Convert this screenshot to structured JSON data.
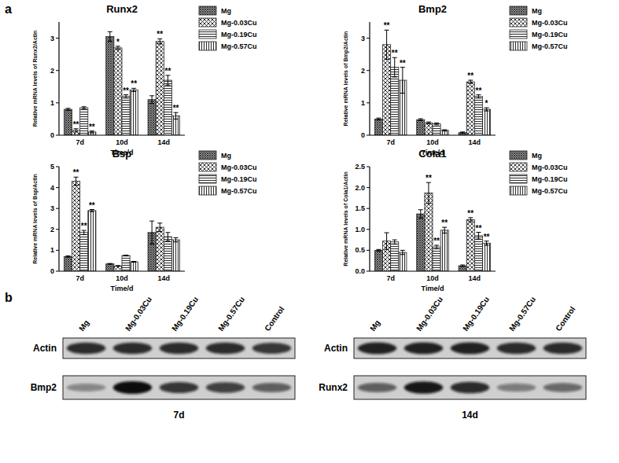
{
  "chart_data": [
    {
      "type": "bar",
      "title": "Runx2",
      "x_label": "Time/d",
      "y_label": "Relative mRNA levels of Runx2/Actin",
      "categories": [
        "7d",
        "10d",
        "14d"
      ],
      "ylim": [
        0,
        3.5
      ],
      "yticks": [
        0,
        1,
        2,
        3
      ],
      "legend": "right",
      "series": [
        {
          "name": "Mg",
          "color": "#333333",
          "values": [
            0.8,
            3.05,
            1.1
          ],
          "errors": [
            0.03,
            0.15,
            0.12
          ],
          "significance": [
            null,
            null,
            null
          ]
        },
        {
          "name": "Mg-0.03Cu",
          "color": "#333333",
          "values": [
            0.15,
            2.7,
            2.9
          ],
          "errors": [
            0.05,
            0.05,
            0.08
          ],
          "significance": [
            "**",
            "*",
            "**"
          ]
        },
        {
          "name": "Mg-0.19Cu",
          "color": "#333333",
          "values": [
            0.85,
            1.2,
            1.7
          ],
          "errors": [
            0.03,
            0.05,
            0.15
          ],
          "significance": [
            null,
            "**",
            "**"
          ]
        },
        {
          "name": "Mg-0.57Cu",
          "color": "#333333",
          "values": [
            0.1,
            1.4,
            0.6
          ],
          "errors": [
            0.03,
            0.05,
            0.1
          ],
          "significance": [
            "**",
            "**",
            "**"
          ]
        }
      ]
    },
    {
      "type": "bar",
      "title": "Bmp2",
      "x_label": "Time/d",
      "y_label": "Relative mRNA levels of Bmp2/Actin",
      "categories": [
        "7d",
        "10d",
        "14d"
      ],
      "ylim": [
        0,
        3.5
      ],
      "yticks": [
        0,
        1,
        2,
        3
      ],
      "legend": "right",
      "series": [
        {
          "name": "Mg",
          "color": "#333333",
          "values": [
            0.5,
            0.48,
            0.08
          ],
          "errors": [
            0.03,
            0.03,
            0.02
          ],
          "significance": [
            null,
            null,
            null
          ]
        },
        {
          "name": "Mg-0.03Cu",
          "color": "#333333",
          "values": [
            2.8,
            0.38,
            1.65
          ],
          "errors": [
            0.45,
            0.03,
            0.05
          ],
          "significance": [
            "**",
            null,
            "**"
          ]
        },
        {
          "name": "Mg-0.19Cu",
          "color": "#333333",
          "values": [
            2.1,
            0.35,
            1.2
          ],
          "errors": [
            0.3,
            0.03,
            0.05
          ],
          "significance": [
            "**",
            null,
            "**"
          ]
        },
        {
          "name": "Mg-0.57Cu",
          "color": "#333333",
          "values": [
            1.7,
            0.15,
            0.8
          ],
          "errors": [
            0.4,
            0.02,
            0.05
          ],
          "significance": [
            "**",
            null,
            "*"
          ]
        }
      ]
    },
    {
      "type": "bar",
      "title": "Bsp",
      "x_label": "Time/d",
      "y_label": "Relative mRNA levels of Bsp/Actin",
      "categories": [
        "7d",
        "10d",
        "14d"
      ],
      "ylim": [
        0,
        5
      ],
      "yticks": [
        0,
        1,
        2,
        3,
        4,
        5
      ],
      "legend": "right",
      "series": [
        {
          "name": "Mg",
          "color": "#333333",
          "values": [
            0.7,
            0.35,
            1.85
          ],
          "errors": [
            0.03,
            0.02,
            0.55
          ],
          "significance": [
            null,
            null,
            null
          ]
        },
        {
          "name": "Mg-0.03Cu",
          "color": "#333333",
          "values": [
            4.3,
            0.25,
            2.1
          ],
          "errors": [
            0.2,
            0.02,
            0.2
          ],
          "significance": [
            "**",
            null,
            null
          ]
        },
        {
          "name": "Mg-0.19Cu",
          "color": "#333333",
          "values": [
            1.85,
            0.75,
            1.65
          ],
          "errors": [
            0.1,
            0.02,
            0.2
          ],
          "significance": [
            "**",
            null,
            null
          ]
        },
        {
          "name": "Mg-0.57Cu",
          "color": "#333333",
          "values": [
            2.9,
            0.45,
            1.5
          ],
          "errors": [
            0.05,
            0.02,
            0.1
          ],
          "significance": [
            "**",
            null,
            null
          ]
        }
      ]
    },
    {
      "type": "bar",
      "title": "Cola1",
      "x_label": "Time/d",
      "y_label": "Relative mRNA levels of Cola1/Actin",
      "categories": [
        "7d",
        "10d",
        "14d"
      ],
      "ylim": [
        0,
        2.5
      ],
      "yticks": [
        {
          "value": 0,
          "label": "0.0"
        },
        {
          "value": 0.5,
          "label": "0.5"
        },
        {
          "value": 1,
          "label": "1.0"
        },
        {
          "value": 1.5,
          "label": "1.5"
        },
        {
          "value": 2,
          "label": "2.0"
        },
        {
          "value": 2.5,
          "label": "2.5"
        }
      ],
      "legend": "right",
      "series": [
        {
          "name": "Mg",
          "color": "#333333",
          "values": [
            0.5,
            1.37,
            0.13
          ],
          "errors": [
            0.02,
            0.1,
            0.02
          ],
          "significance": [
            null,
            null,
            null
          ]
        },
        {
          "name": "Mg-0.03Cu",
          "color": "#333333",
          "values": [
            0.72,
            1.87,
            1.23
          ],
          "errors": [
            0.2,
            0.25,
            0.05
          ],
          "significance": [
            null,
            "**",
            "**"
          ]
        },
        {
          "name": "Mg-0.19Cu",
          "color": "#333333",
          "values": [
            0.7,
            0.58,
            0.85
          ],
          "errors": [
            0.05,
            0.04,
            0.08
          ],
          "significance": [
            null,
            "**",
            "**"
          ]
        },
        {
          "name": "Mg-0.57Cu",
          "color": "#333333",
          "values": [
            0.45,
            0.98,
            0.67
          ],
          "errors": [
            0.05,
            0.07,
            0.05
          ],
          "significance": [
            null,
            "**",
            "**"
          ]
        }
      ]
    }
  ],
  "panel_labels": [
    "a",
    "b"
  ],
  "blots": [
    {
      "time": "7d",
      "lanes": [
        "Mg",
        "Mg-0.03Cu",
        "Mg-0.19Cu",
        "Mg-0.57Cu",
        "Control"
      ],
      "rows": [
        {
          "label": "Actin",
          "intensity": [
            0.85,
            0.85,
            0.85,
            0.85,
            0.8
          ]
        },
        {
          "label": "Bmp2",
          "intensity": [
            0.4,
            1,
            0.8,
            0.75,
            0.6
          ]
        }
      ]
    },
    {
      "time": "14d",
      "lanes": [
        "Mg",
        "Mg-0.03Cu",
        "Mg-0.19Cu",
        "Mg-0.57Cu",
        "Control"
      ],
      "rows": [
        {
          "label": "Actin",
          "intensity": [
            0.9,
            0.9,
            0.9,
            0.85,
            0.85
          ]
        },
        {
          "label": "Runx2",
          "intensity": [
            0.6,
            0.95,
            0.85,
            0.45,
            0.55
          ]
        }
      ]
    }
  ]
}
